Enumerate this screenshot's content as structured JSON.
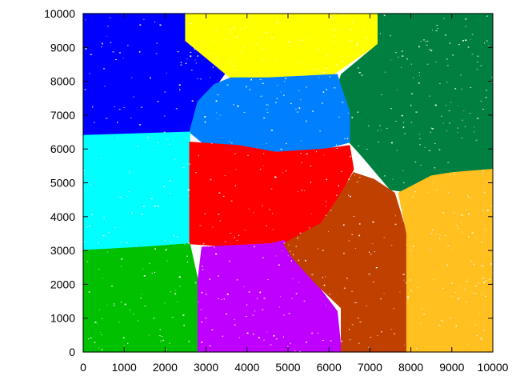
{
  "chart_data": {
    "type": "scatter",
    "title": "",
    "xlabel": "",
    "ylabel": "",
    "xlim": [
      0,
      10000
    ],
    "ylim": [
      0,
      10000
    ],
    "xticks": [
      0,
      1000,
      2000,
      3000,
      4000,
      5000,
      6000,
      7000,
      8000,
      9000,
      10000
    ],
    "yticks": [
      0,
      1000,
      2000,
      3000,
      4000,
      5000,
      6000,
      7000,
      8000,
      9000,
      10000
    ],
    "grid": false,
    "legend": "none",
    "series": [
      {
        "color": "#0000ff",
        "region": [
          [
            0,
            10000
          ],
          [
            2500,
            10000
          ],
          [
            2600,
            9100
          ],
          [
            3500,
            8300
          ],
          [
            3200,
            7800
          ],
          [
            2800,
            7400
          ],
          [
            2600,
            6500
          ],
          [
            0,
            6400
          ]
        ]
      },
      {
        "color": "#ffff00",
        "region": [
          [
            2500,
            10000
          ],
          [
            7200,
            10000
          ],
          [
            7300,
            9200
          ],
          [
            6700,
            8700
          ],
          [
            6100,
            8200
          ],
          [
            4500,
            8100
          ],
          [
            3600,
            8100
          ],
          [
            2500,
            9200
          ]
        ]
      },
      {
        "color": "#008040",
        "region": [
          [
            7200,
            10000
          ],
          [
            10000,
            10000
          ],
          [
            10000,
            5400
          ],
          [
            8900,
            5200
          ],
          [
            8100,
            4700
          ],
          [
            7500,
            4800
          ],
          [
            6800,
            5800
          ],
          [
            6500,
            6200
          ],
          [
            6400,
            7100
          ],
          [
            6200,
            7800
          ],
          [
            6300,
            8200
          ],
          [
            7200,
            9100
          ]
        ]
      },
      {
        "color": "#0080ff",
        "region": [
          [
            2600,
            6500
          ],
          [
            2800,
            7400
          ],
          [
            3200,
            7900
          ],
          [
            3600,
            8100
          ],
          [
            4500,
            8100
          ],
          [
            6200,
            8200
          ],
          [
            6300,
            7800
          ],
          [
            6500,
            7100
          ],
          [
            6500,
            6200
          ],
          [
            5900,
            6000
          ],
          [
            4700,
            5900
          ],
          [
            3800,
            6100
          ],
          [
            3000,
            6100
          ]
        ]
      },
      {
        "color": "#00ffff",
        "region": [
          [
            0,
            6400
          ],
          [
            2600,
            6500
          ],
          [
            2600,
            3100
          ],
          [
            1400,
            3000
          ],
          [
            0,
            3000
          ]
        ]
      },
      {
        "color": "#ff0000",
        "region": [
          [
            2600,
            6200
          ],
          [
            3800,
            6100
          ],
          [
            4700,
            5900
          ],
          [
            5900,
            6000
          ],
          [
            6500,
            6100
          ],
          [
            6600,
            5400
          ],
          [
            6200,
            4500
          ],
          [
            5800,
            3800
          ],
          [
            4900,
            3200
          ],
          [
            3800,
            3100
          ],
          [
            2600,
            3200
          ]
        ]
      },
      {
        "color": "#00c000",
        "region": [
          [
            0,
            3000
          ],
          [
            1500,
            3100
          ],
          [
            2600,
            3200
          ],
          [
            2800,
            2100
          ],
          [
            2800,
            0
          ],
          [
            0,
            0
          ]
        ]
      },
      {
        "color": "#c000ff",
        "region": [
          [
            2800,
            0
          ],
          [
            2800,
            2100
          ],
          [
            2900,
            3100
          ],
          [
            4600,
            3200
          ],
          [
            4900,
            3300
          ],
          [
            5100,
            2800
          ],
          [
            5700,
            2000
          ],
          [
            6200,
            1200
          ],
          [
            6300,
            0
          ]
        ]
      },
      {
        "color": "#c04000",
        "region": [
          [
            5100,
            2800
          ],
          [
            4900,
            3200
          ],
          [
            5800,
            3800
          ],
          [
            6200,
            4500
          ],
          [
            6600,
            5300
          ],
          [
            7100,
            5100
          ],
          [
            7600,
            4700
          ],
          [
            7900,
            3500
          ],
          [
            7900,
            2500
          ],
          [
            7900,
            0
          ],
          [
            6300,
            0
          ],
          [
            6300,
            1300
          ],
          [
            5700,
            2000
          ]
        ]
      },
      {
        "color": "#ffc020",
        "region": [
          [
            7900,
            0
          ],
          [
            7900,
            2600
          ],
          [
            7900,
            3500
          ],
          [
            7700,
            4700
          ],
          [
            8500,
            5200
          ],
          [
            9000,
            5300
          ],
          [
            10000,
            5400
          ],
          [
            10000,
            0
          ]
        ]
      }
    ]
  }
}
